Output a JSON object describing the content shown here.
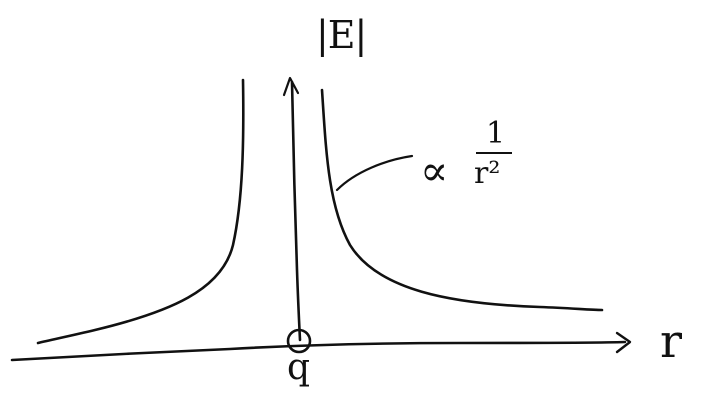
{
  "diagram": {
    "y_axis_label": "|E|",
    "x_axis_label": "r",
    "charge_label": "q",
    "annotation": {
      "prefix": "∝",
      "numerator": "1",
      "denominator": "r²"
    }
  }
}
